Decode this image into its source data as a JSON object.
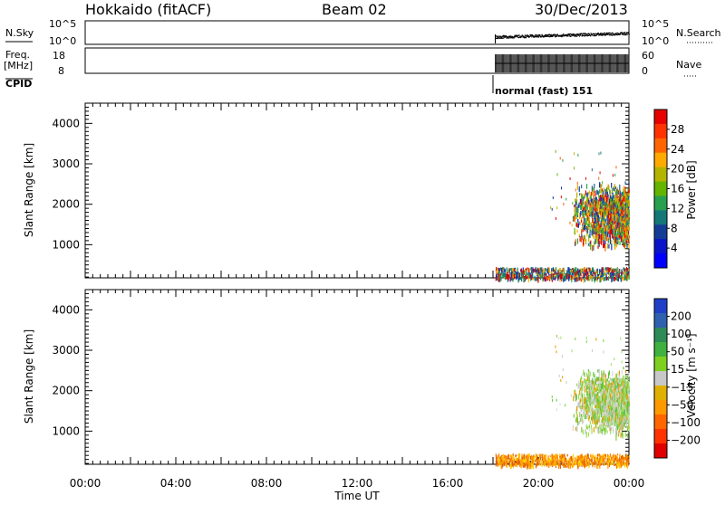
{
  "header": {
    "station": "Hokkaido (fitACF)",
    "beam": "Beam 02",
    "date": "30/Dec/2013"
  },
  "panels": {
    "nsky_label": "N.Sky",
    "nsearch_label": "N.Search",
    "nsky_ticks": [
      "10^5",
      "10^0"
    ],
    "freq_label_1": "Freq.",
    "freq_label_2": "[MHz]",
    "freq_ticks": [
      "18",
      "8"
    ],
    "nave_label": "Nave",
    "nave_ticks": [
      "60",
      "0"
    ],
    "cpid_label": "CPID",
    "cpid_text": "normal (fast) 151"
  },
  "axes": {
    "ylabel": "Slant Range [km]",
    "yticks": [
      "4000",
      "3000",
      "2000",
      "1000"
    ],
    "xlabel": "Time UT",
    "xticks": [
      "00:00",
      "04:00",
      "08:00",
      "12:00",
      "16:00",
      "20:00",
      "00:00"
    ]
  },
  "colorbars": {
    "power": {
      "label": "Power [dB]",
      "ticks": [
        "28",
        "24",
        "20",
        "16",
        "12",
        "8",
        "4"
      ],
      "colors": [
        "#e60000",
        "#ff3300",
        "#ff6600",
        "#ffaa00",
        "#b4b400",
        "#64b400",
        "#28a050",
        "#147878",
        "#143c96",
        "#0a14c8",
        "#0000ff"
      ]
    },
    "velocity": {
      "label": "Velocity [m s⁻¹]",
      "ticks": [
        "200",
        "100",
        "50",
        "15",
        "−15",
        "−50",
        "−100",
        "−200"
      ],
      "colors": [
        "#2040c8",
        "#3060b0",
        "#2e8b57",
        "#40b040",
        "#7ed020",
        "#c8c8c8",
        "#e0b000",
        "#ff9900",
        "#ff6600",
        "#ff3300",
        "#e00000"
      ]
    }
  },
  "colors": {
    "nsky_dots": "#000000",
    "power_points": [
      "#e00000",
      "#ff5a00",
      "#ffaa00",
      "#b4b400",
      "#64b400",
      "#28a050",
      "#1e64a0",
      "#1432b4"
    ],
    "velocity_points": [
      "#80d040",
      "#a0e060",
      "#c8c8c8",
      "#d8d8d8",
      "#60c040",
      "#e0a000"
    ],
    "ground_points": [
      "#ffa000",
      "#ff8000",
      "#e06000",
      "#ffcc00"
    ]
  },
  "chart_data": [
    {
      "type": "scatter",
      "name": "power",
      "title": "Power",
      "x_range_hours": [
        0,
        24
      ],
      "ylim_km": [
        180,
        4500
      ],
      "data_start_hour": 18.1,
      "echo_region": {
        "x_hours": [
          21.5,
          24
        ],
        "y_km": [
          900,
          3300
        ]
      },
      "ground_region": {
        "x_hours": [
          18.1,
          24
        ],
        "y_km": [
          180,
          450
        ]
      }
    },
    {
      "type": "scatter",
      "name": "velocity",
      "title": "Velocity",
      "x_range_hours": [
        0,
        24
      ],
      "ylim_km": [
        180,
        4500
      ],
      "data_start_hour": 18.1,
      "echo_region": {
        "x_hours": [
          21.5,
          24
        ],
        "y_km": [
          900,
          3300
        ]
      },
      "ground_region": {
        "x_hours": [
          18.1,
          24
        ],
        "y_km": [
          180,
          450
        ]
      }
    }
  ]
}
